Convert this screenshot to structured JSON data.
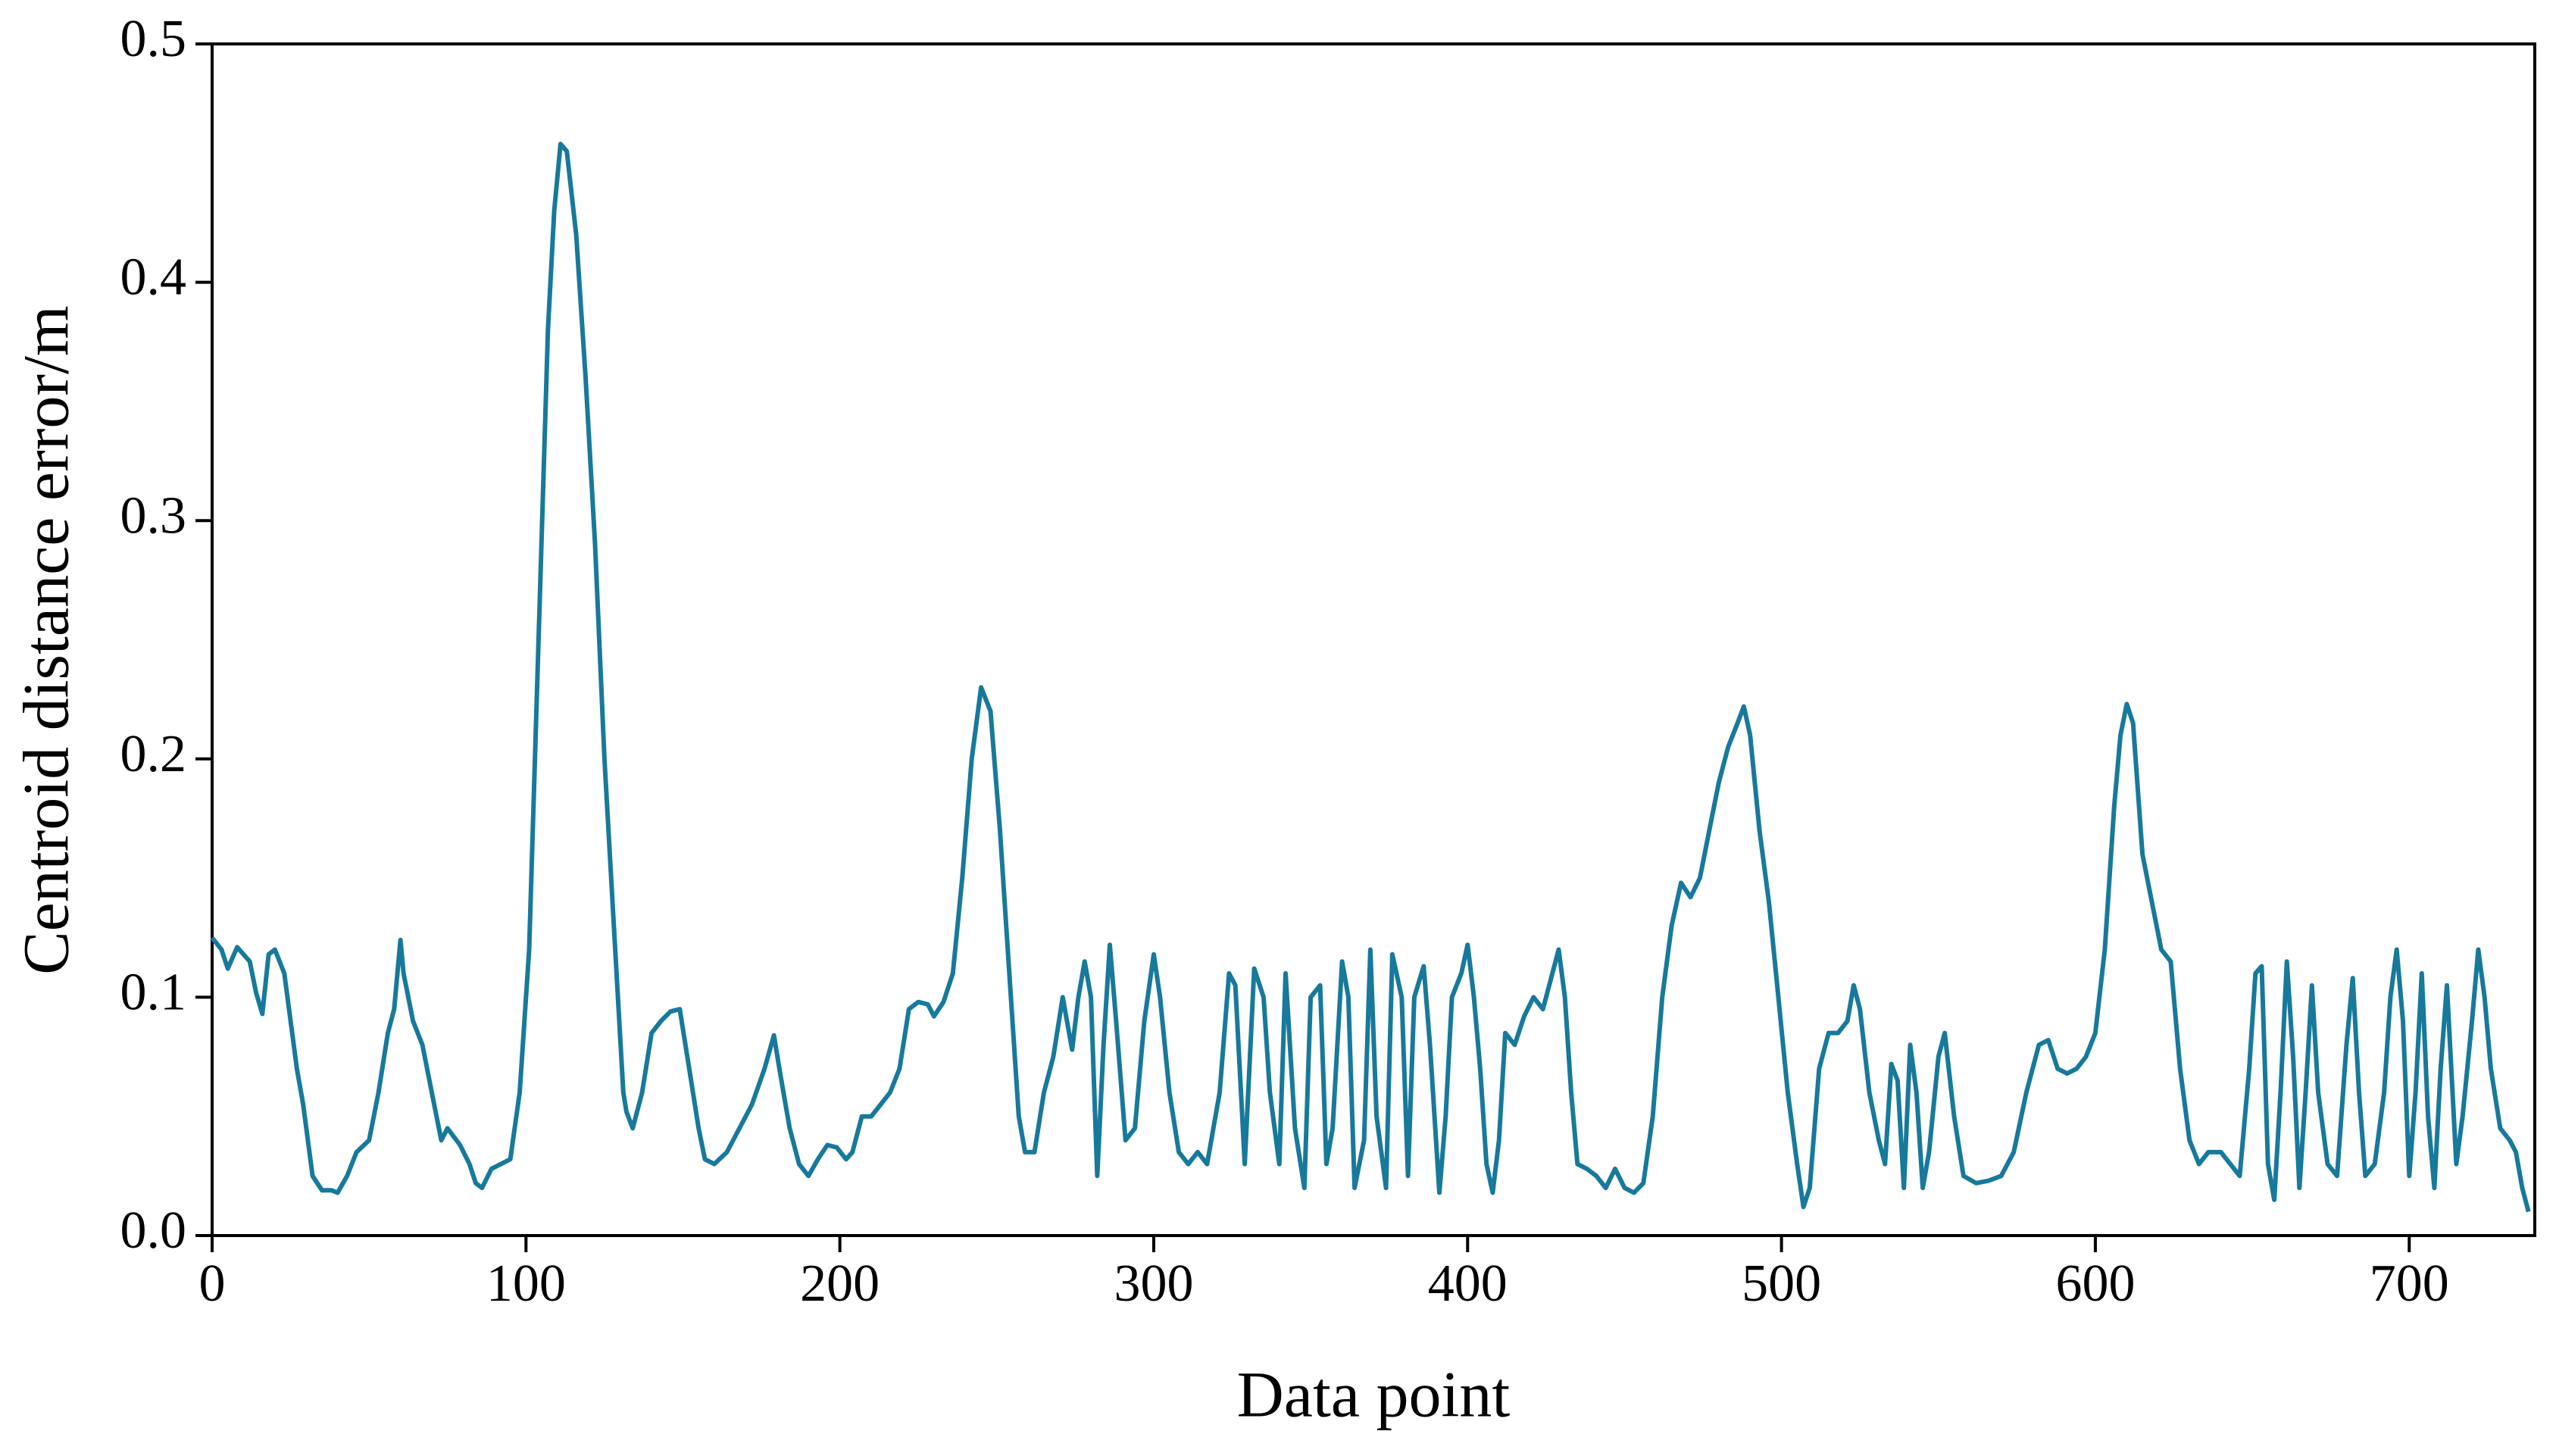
{
  "chart_data": {
    "type": "line",
    "x_label": "Data point",
    "y_label": "Centroid distance error/m",
    "color": "#17799c",
    "xlim": [
      0,
      740
    ],
    "xticks": [
      0,
      100,
      200,
      300,
      400,
      500,
      600,
      700
    ],
    "ylim": [
      0,
      0.5
    ],
    "yticks": [
      {
        "value": 0,
        "label": "0.0"
      },
      0.1,
      0.2,
      0.3,
      0.4,
      0.5
    ],
    "x": [
      0,
      3,
      5,
      8,
      12,
      14,
      16,
      18,
      20,
      23,
      25,
      27,
      29,
      32,
      35,
      38,
      40,
      43,
      46,
      50,
      53,
      56,
      58,
      60,
      61,
      64,
      67,
      70,
      73,
      75,
      79,
      82,
      84,
      86,
      89,
      92,
      95,
      98,
      101,
      104,
      107,
      109,
      111,
      113,
      116,
      119,
      122,
      125,
      128,
      131,
      132,
      134,
      137,
      140,
      143,
      146,
      149,
      152,
      155,
      157,
      160,
      164,
      168,
      172,
      176,
      179,
      181,
      184,
      187,
      190,
      193,
      196,
      199,
      202,
      204,
      207,
      210,
      213,
      216,
      219,
      222,
      225,
      228,
      230,
      233,
      236,
      239,
      242,
      245,
      248,
      251,
      253,
      255,
      257,
      259,
      262,
      265,
      268,
      271,
      274,
      276,
      278,
      280,
      282,
      284,
      286,
      288,
      291,
      294,
      297,
      300,
      302,
      305,
      308,
      311,
      314,
      317,
      321,
      324,
      326,
      329,
      332,
      335,
      337,
      340,
      342,
      345,
      348,
      350,
      353,
      355,
      357,
      360,
      362,
      364,
      367,
      369,
      371,
      374,
      376,
      379,
      381,
      383,
      386,
      388,
      391,
      393,
      395,
      398,
      400,
      402,
      404,
      406,
      408,
      410,
      412,
      415,
      418,
      421,
      424,
      427,
      429,
      431,
      433,
      435,
      438,
      441,
      444,
      447,
      450,
      453,
      456,
      459,
      462,
      465,
      468,
      471,
      474,
      477,
      480,
      483,
      486,
      488,
      490,
      493,
      496,
      499,
      502,
      505,
      507,
      509,
      512,
      515,
      518,
      521,
      523,
      525,
      528,
      531,
      533,
      535,
      537,
      539,
      541,
      543,
      545,
      547,
      550,
      552,
      555,
      558,
      562,
      566,
      570,
      574,
      578,
      582,
      585,
      588,
      591,
      594,
      597,
      600,
      603,
      606,
      608,
      610,
      612,
      615,
      618,
      621,
      624,
      627,
      630,
      633,
      636,
      640,
      643,
      646,
      649,
      651,
      653,
      655,
      657,
      659,
      661,
      663,
      665,
      667,
      669,
      671,
      674,
      677,
      680,
      682,
      684,
      686,
      689,
      692,
      694,
      696,
      698,
      700,
      702,
      704,
      706,
      708,
      710,
      712,
      715,
      717,
      720,
      722,
      724,
      726,
      729,
      732,
      734,
      736,
      738
    ],
    "values": [
      0.125,
      0.12,
      0.112,
      0.121,
      0.115,
      0.102,
      0.093,
      0.118,
      0.12,
      0.11,
      0.09,
      0.07,
      0.055,
      0.025,
      0.019,
      0.019,
      0.018,
      0.025,
      0.035,
      0.04,
      0.06,
      0.085,
      0.095,
      0.124,
      0.11,
      0.09,
      0.08,
      0.06,
      0.04,
      0.045,
      0.038,
      0.03,
      0.022,
      0.02,
      0.028,
      0.03,
      0.032,
      0.06,
      0.12,
      0.25,
      0.38,
      0.43,
      0.458,
      0.455,
      0.42,
      0.36,
      0.29,
      0.2,
      0.13,
      0.06,
      0.052,
      0.045,
      0.06,
      0.085,
      0.09,
      0.094,
      0.095,
      0.07,
      0.045,
      0.032,
      0.03,
      0.035,
      0.045,
      0.055,
      0.07,
      0.084,
      0.068,
      0.045,
      0.03,
      0.025,
      0.032,
      0.038,
      0.037,
      0.032,
      0.035,
      0.05,
      0.05,
      0.055,
      0.06,
      0.07,
      0.095,
      0.098,
      0.097,
      0.092,
      0.098,
      0.11,
      0.15,
      0.2,
      0.23,
      0.22,
      0.17,
      0.13,
      0.09,
      0.05,
      0.035,
      0.035,
      0.06,
      0.075,
      0.1,
      0.078,
      0.1,
      0.115,
      0.1,
      0.025,
      0.08,
      0.122,
      0.09,
      0.04,
      0.045,
      0.09,
      0.118,
      0.1,
      0.06,
      0.035,
      0.03,
      0.035,
      0.03,
      0.06,
      0.11,
      0.105,
      0.03,
      0.112,
      0.1,
      0.06,
      0.03,
      0.11,
      0.045,
      0.02,
      0.1,
      0.105,
      0.03,
      0.045,
      0.115,
      0.1,
      0.02,
      0.04,
      0.12,
      0.05,
      0.02,
      0.118,
      0.1,
      0.025,
      0.1,
      0.113,
      0.08,
      0.018,
      0.05,
      0.1,
      0.11,
      0.122,
      0.1,
      0.07,
      0.03,
      0.018,
      0.04,
      0.085,
      0.08,
      0.092,
      0.1,
      0.095,
      0.11,
      0.12,
      0.1,
      0.06,
      0.03,
      0.028,
      0.025,
      0.02,
      0.028,
      0.02,
      0.018,
      0.022,
      0.05,
      0.1,
      0.13,
      0.148,
      0.142,
      0.15,
      0.17,
      0.19,
      0.205,
      0.215,
      0.222,
      0.21,
      0.17,
      0.14,
      0.1,
      0.06,
      0.03,
      0.012,
      0.02,
      0.07,
      0.085,
      0.085,
      0.09,
      0.105,
      0.095,
      0.06,
      0.04,
      0.03,
      0.072,
      0.065,
      0.02,
      0.08,
      0.06,
      0.02,
      0.035,
      0.075,
      0.085,
      0.05,
      0.025,
      0.022,
      0.023,
      0.025,
      0.035,
      0.06,
      0.08,
      0.082,
      0.07,
      0.068,
      0.07,
      0.075,
      0.085,
      0.12,
      0.18,
      0.21,
      0.223,
      0.215,
      0.16,
      0.14,
      0.12,
      0.115,
      0.07,
      0.04,
      0.03,
      0.035,
      0.035,
      0.03,
      0.025,
      0.07,
      0.11,
      0.113,
      0.03,
      0.015,
      0.06,
      0.115,
      0.075,
      0.02,
      0.06,
      0.105,
      0.06,
      0.03,
      0.025,
      0.08,
      0.108,
      0.06,
      0.025,
      0.03,
      0.06,
      0.1,
      0.12,
      0.09,
      0.025,
      0.06,
      0.11,
      0.05,
      0.02,
      0.07,
      0.105,
      0.03,
      0.05,
      0.09,
      0.12,
      0.1,
      0.07,
      0.045,
      0.04,
      0.035,
      0.02,
      0.01
    ]
  }
}
